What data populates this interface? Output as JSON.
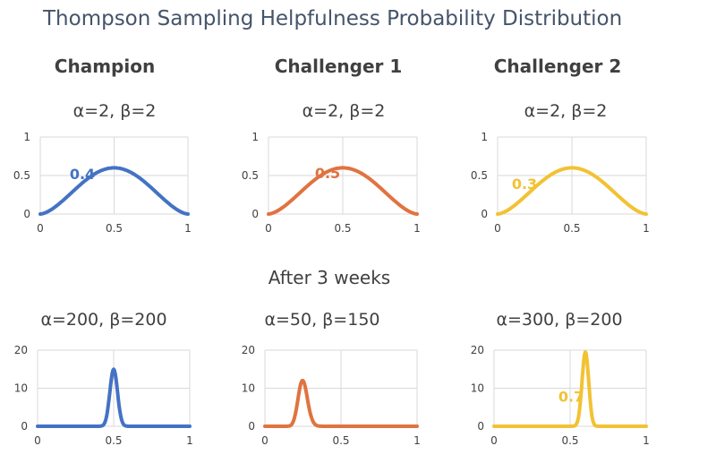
{
  "title": "Thompson Sampling Helpfulness Probability Distribution",
  "arms": [
    {
      "name": "Champion",
      "color": "#4472c4"
    },
    {
      "name": "Challenger 1",
      "color": "#e07340"
    },
    {
      "name": "Challenger 2",
      "color": "#f2c233"
    }
  ],
  "section_label": "After 3 weeks",
  "chart_data": [
    {
      "type": "line",
      "panel": "initial-champion",
      "params_label": "α=2, β=2",
      "alpha": 2,
      "beta": 2,
      "color": "#4472c4",
      "xlim": [
        0,
        1
      ],
      "ylim": [
        0,
        1
      ],
      "xticks": [
        "0",
        "0.5",
        "1"
      ],
      "yticks": [
        "0",
        "0.5",
        "1"
      ],
      "sample_label": "0.4",
      "sample_value": 0.4
    },
    {
      "type": "line",
      "panel": "initial-challenger-1",
      "params_label": "α=2, β=2",
      "alpha": 2,
      "beta": 2,
      "color": "#e07340",
      "xlim": [
        0,
        1
      ],
      "ylim": [
        0,
        1
      ],
      "xticks": [
        "0",
        "0.5",
        "1"
      ],
      "yticks": [
        "0",
        "0.5",
        "1"
      ],
      "sample_label": "0.5",
      "sample_value": 0.5
    },
    {
      "type": "line",
      "panel": "initial-challenger-2",
      "params_label": "α=2, β=2",
      "alpha": 2,
      "beta": 2,
      "color": "#f2c233",
      "xlim": [
        0,
        1
      ],
      "ylim": [
        0,
        1
      ],
      "xticks": [
        "0",
        "0.5",
        "1"
      ],
      "yticks": [
        "0",
        "0.5",
        "1"
      ],
      "sample_label": "0.3",
      "sample_value": 0.3
    },
    {
      "type": "line",
      "panel": "after-champion",
      "params_label": "α=200, β=200",
      "alpha": 200,
      "beta": 200,
      "color": "#4472c4",
      "xlim": [
        0,
        1
      ],
      "ylim": [
        0,
        20
      ],
      "xticks": [
        "0",
        "0.5",
        "1"
      ],
      "yticks": [
        "0",
        "10",
        "20"
      ],
      "peak": 15
    },
    {
      "type": "line",
      "panel": "after-challenger-1",
      "params_label": "α=50, β=150",
      "alpha": 50,
      "beta": 150,
      "color": "#e07340",
      "xlim": [
        0,
        1
      ],
      "ylim": [
        0,
        20
      ],
      "xticks": [
        "0",
        "0.5",
        "1"
      ],
      "yticks": [
        "0",
        "10",
        "20"
      ],
      "peak": 12
    },
    {
      "type": "line",
      "panel": "after-challenger-2",
      "params_label": "α=300, β=200",
      "alpha": 300,
      "beta": 200,
      "color": "#f2c233",
      "xlim": [
        0,
        1
      ],
      "ylim": [
        0,
        20
      ],
      "xticks": [
        "0",
        "0.5",
        "1"
      ],
      "yticks": [
        "0",
        "10",
        "20"
      ],
      "peak": 19.5,
      "sample_label": "0.7",
      "sample_value": 0.7
    }
  ]
}
